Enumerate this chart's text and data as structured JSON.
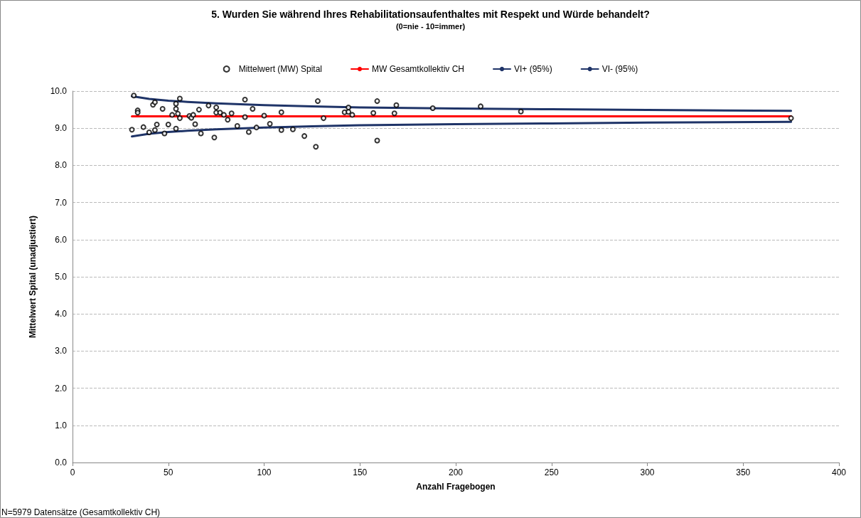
{
  "chart_data": {
    "type": "scatter",
    "title": "5. Wurden Sie während Ihres Rehabilitationsaufenthaltes mit Respekt und Würde behandelt?",
    "subtitle": "(0=nie - 10=immer)",
    "xlabel": "Anzahl Fragebogen",
    "ylabel": "Mittelwert Spital (unadjustiert)",
    "annotations": [
      "N=5979 Datensätze (Gesamtkollektiv CH)"
    ],
    "xlim": [
      0,
      400
    ],
    "xticks": [
      0,
      50,
      100,
      150,
      200,
      250,
      300,
      350,
      400
    ],
    "ylim": [
      0,
      10
    ],
    "yticks": [
      {
        "value": 0,
        "label": "0.0"
      },
      {
        "value": 1,
        "label": "1.0"
      },
      {
        "value": 2,
        "label": "2.0"
      },
      {
        "value": 3,
        "label": "3.0"
      },
      {
        "value": 4,
        "label": "4.0"
      },
      {
        "value": 5,
        "label": "5.0"
      },
      {
        "value": 6,
        "label": "6.0"
      },
      {
        "value": 7,
        "label": "7.0"
      },
      {
        "value": 8,
        "label": "8.0"
      },
      {
        "value": 9,
        "label": "9.0"
      },
      {
        "value": 10,
        "label": "10.0"
      }
    ],
    "grid": "y",
    "legend": "top",
    "series": [
      {
        "name": "Mittelwert (MW) Spital",
        "marker": "circle",
        "color": "#000000",
        "x": [
          32,
          31,
          34,
          34,
          37,
          40,
          42,
          43,
          43,
          44,
          47,
          48,
          50,
          52,
          54,
          54,
          54,
          55,
          56,
          56,
          61,
          62,
          63,
          64,
          66,
          67,
          71,
          74,
          75,
          75,
          77,
          79,
          81,
          83,
          86,
          90,
          90,
          92,
          94,
          96,
          100,
          103,
          109,
          109,
          115,
          121,
          127,
          128,
          131,
          142,
          144,
          144,
          146,
          157,
          159,
          159,
          168,
          169,
          188,
          213,
          234,
          375
        ],
        "values": [
          9.88,
          8.96,
          9.48,
          9.42,
          9.03,
          8.89,
          9.63,
          9.7,
          8.95,
          9.1,
          9.52,
          8.86,
          9.1,
          9.36,
          9.66,
          9.52,
          8.99,
          9.39,
          9.8,
          9.27,
          9.33,
          9.28,
          9.36,
          9.11,
          9.5,
          8.86,
          9.61,
          8.75,
          9.56,
          9.42,
          9.42,
          9.36,
          9.23,
          9.4,
          9.06,
          9.77,
          9.3,
          8.9,
          9.52,
          9.02,
          9.34,
          9.12,
          9.43,
          8.95,
          8.97,
          8.79,
          8.5,
          9.73,
          9.27,
          9.43,
          9.56,
          9.44,
          9.36,
          9.41,
          9.73,
          8.67,
          9.4,
          9.62,
          9.54,
          9.59,
          9.45,
          9.27
        ]
      },
      {
        "name": "MW Gesamtkollektiv CH",
        "type": "line",
        "marker": "none",
        "color": "#ff0000",
        "x": [
          31,
          375
        ],
        "values": [
          9.32,
          9.32
        ]
      },
      {
        "name": "VI+ (95%)",
        "type": "line",
        "marker": "none",
        "color": "#1f3468",
        "x": [
          31,
          40,
          50,
          60,
          75,
          100,
          125,
          150,
          200,
          250,
          300,
          375
        ],
        "values": [
          9.86,
          9.79,
          9.74,
          9.71,
          9.67,
          9.62,
          9.59,
          9.56,
          9.53,
          9.51,
          9.49,
          9.47
        ]
      },
      {
        "name": "VI- (95%)",
        "type": "line",
        "marker": "none",
        "color": "#1f3468",
        "x": [
          31,
          40,
          50,
          60,
          75,
          100,
          125,
          150,
          200,
          250,
          300,
          375
        ],
        "values": [
          8.78,
          8.85,
          8.9,
          8.93,
          8.97,
          9.02,
          9.05,
          9.08,
          9.11,
          9.13,
          9.15,
          9.17
        ]
      }
    ]
  }
}
